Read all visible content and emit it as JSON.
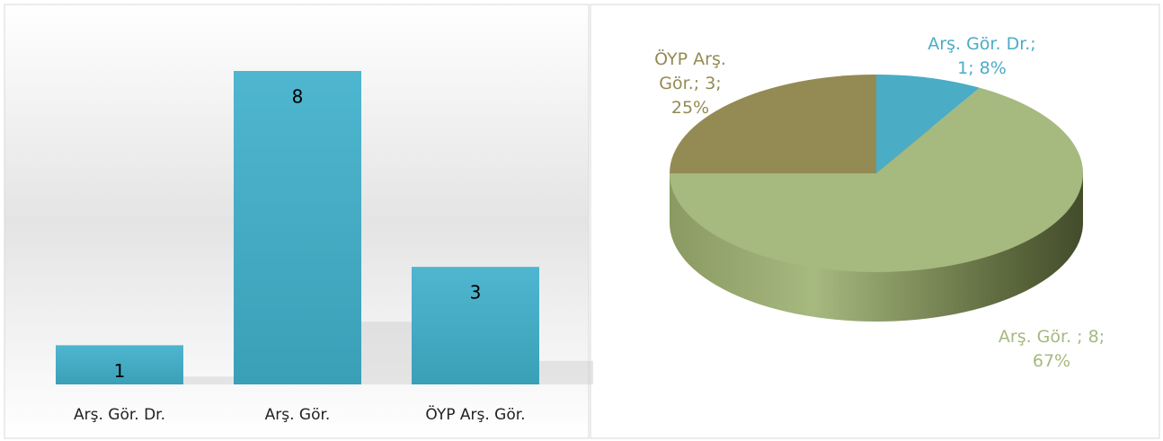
{
  "chart_data": [
    {
      "type": "bar",
      "categories": [
        "Arş. Gör. Dr.",
        "Arş. Gör.",
        "ÖYP Arş. Gör."
      ],
      "values": [
        1,
        8,
        3
      ],
      "color": "#4bacc6"
    },
    {
      "type": "pie",
      "categories": [
        "Arş. Gör. Dr.",
        "Arş. Gör. ",
        "ÖYP Arş. Gör."
      ],
      "values": [
        1,
        8,
        3
      ],
      "value_labels": [
        "Arş. Gör. Dr.; 1; 8%",
        "Arş. Gör. ; 8; 67%",
        "ÖYP Arş. Gör.; 3; 25%"
      ],
      "colors": [
        "#4bacc6",
        "#a6b97f",
        "#948a54"
      ]
    }
  ]
}
